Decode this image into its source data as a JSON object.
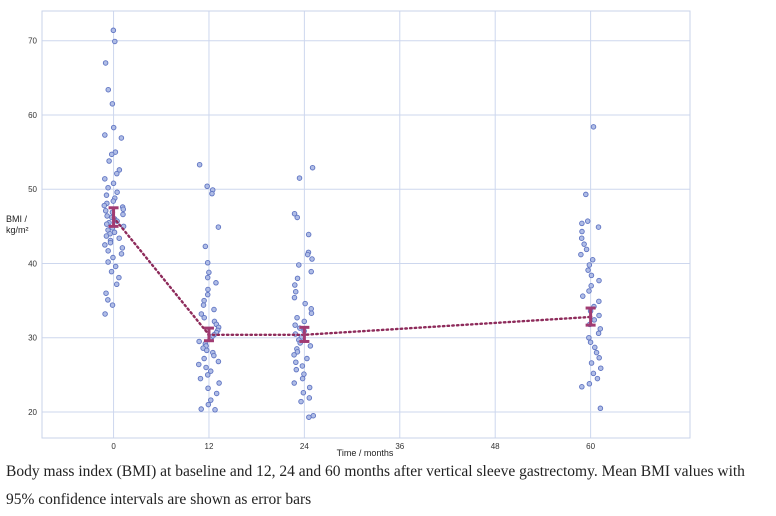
{
  "chart_data": {
    "type": "scatter",
    "xlabel": "Time / months",
    "ylabel": [
      "BMI /",
      "kg/m²"
    ],
    "xlim": [
      -9,
      72.5
    ],
    "ylim": [
      16.5,
      74
    ],
    "xticks": [
      0,
      12,
      24,
      36,
      48,
      60
    ],
    "yticks": [
      20,
      30,
      40,
      50,
      60,
      70
    ],
    "grid": true,
    "means": [
      {
        "x": 0,
        "mean": 46.2,
        "ci": [
          45.0,
          47.5
        ]
      },
      {
        "x": 12,
        "mean": 30.4,
        "ci": [
          29.6,
          31.3
        ]
      },
      {
        "x": 24,
        "mean": 30.4,
        "ci": [
          29.5,
          31.4
        ]
      },
      {
        "x": 60,
        "mean": 32.8,
        "ci": [
          31.7,
          34.0
        ]
      }
    ],
    "points": [
      {
        "x": 0,
        "y": [
          71.4,
          69.9,
          67.0,
          63.4,
          61.5,
          58.3,
          57.3,
          56.9,
          55.0,
          54.7,
          53.8,
          52.6,
          52.1,
          51.4,
          50.8,
          50.2,
          49.6,
          49.2,
          48.8,
          48.4,
          48.1,
          47.8,
          47.6,
          47.3,
          47.1,
          46.9,
          46.6,
          46.4,
          46.2,
          46.0,
          45.7,
          45.5,
          45.3,
          45.0,
          44.8,
          44.5,
          44.2,
          44.0,
          43.7,
          43.4,
          43.1,
          42.8,
          42.5,
          42.1,
          41.7,
          41.3,
          40.8,
          40.2,
          39.6,
          38.9,
          38.1,
          37.2,
          36.0,
          35.1,
          34.4,
          33.2
        ]
      },
      {
        "x": 12,
        "y": [
          53.3,
          50.4,
          49.9,
          49.4,
          44.9,
          42.3,
          40.1,
          38.8,
          38.1,
          37.4,
          36.5,
          35.8,
          35.0,
          34.4,
          33.8,
          33.2,
          32.7,
          32.2,
          31.8,
          31.4,
          31.0,
          30.7,
          30.4,
          30.1,
          29.8,
          29.5,
          29.2,
          28.9,
          28.6,
          28.3,
          28.0,
          27.6,
          27.2,
          26.8,
          26.4,
          26.0,
          25.5,
          25.0,
          24.5,
          23.9,
          23.2,
          22.5,
          21.6,
          21.0,
          20.4,
          20.3
        ]
      },
      {
        "x": 24,
        "y": [
          52.9,
          51.5,
          46.7,
          46.2,
          43.9,
          41.5,
          41.2,
          40.6,
          39.8,
          38.9,
          38.0,
          37.1,
          36.2,
          35.4,
          34.6,
          33.9,
          33.3,
          32.7,
          32.2,
          31.7,
          31.3,
          30.9,
          30.5,
          30.1,
          29.7,
          29.3,
          28.9,
          28.5,
          28.1,
          27.7,
          27.2,
          26.7,
          26.2,
          25.7,
          25.1,
          24.5,
          23.9,
          23.3,
          22.6,
          21.9,
          21.4,
          19.5,
          19.3
        ]
      },
      {
        "x": 60,
        "y": [
          58.4,
          49.3,
          45.7,
          45.4,
          44.9,
          44.3,
          43.4,
          42.6,
          41.9,
          41.2,
          40.5,
          39.8,
          39.1,
          38.4,
          37.7,
          37.0,
          36.3,
          35.6,
          34.9,
          34.2,
          33.6,
          33.0,
          32.4,
          31.8,
          31.2,
          30.6,
          30.0,
          29.4,
          28.7,
          28.0,
          27.3,
          26.6,
          25.9,
          25.2,
          24.5,
          23.8,
          23.4,
          20.5
        ]
      }
    ],
    "colors": {
      "point_fill": "#b0bde6",
      "point_stroke": "#5f74c2",
      "mean_line": "#8e2b5b",
      "error_bar": "#a13b72",
      "grid": "#cdd7ee",
      "frame": "#c9d3ea"
    }
  },
  "caption": "Body mass index (BMI) at baseline and 12, 24 and 60 months after vertical sleeve gastrectomy. Mean BMI values with 95% confidence intervals are shown as error bars"
}
